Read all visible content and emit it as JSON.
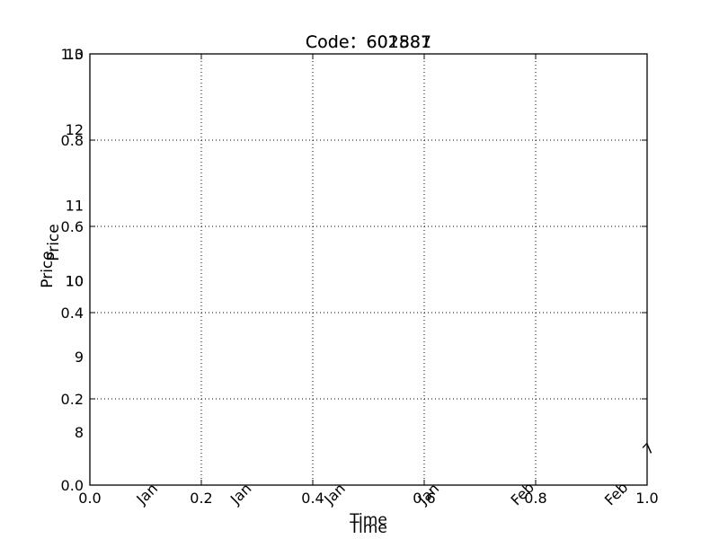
{
  "chart_data": {
    "type": "line",
    "overlay_note_free": true,
    "titles": [
      "Code：601887",
      "Code：602581"
    ],
    "xlabel": "Time",
    "ylabel": "Price",
    "x_ticks": [
      "0.0",
      "0.2",
      "0.4",
      "0.6",
      "0.8",
      "1.0"
    ],
    "y_ticks": [
      "0.0",
      "0.2",
      "0.4",
      "0.6",
      "0.8",
      "1.0"
    ],
    "x_range": [
      0.0,
      1.0
    ],
    "y_range": [
      0.0,
      1.0
    ],
    "price_ticks": [
      "8",
      "9",
      "10",
      "11",
      "12",
      "13",
      "10"
    ],
    "price_range": [
      7.3,
      13
    ],
    "date_ticks": [
      "Jan",
      "Jan",
      "Jan",
      "Jan",
      "Feb",
      "Feb"
    ],
    "date_tick_suffix": "7",
    "grid": true,
    "series": []
  }
}
